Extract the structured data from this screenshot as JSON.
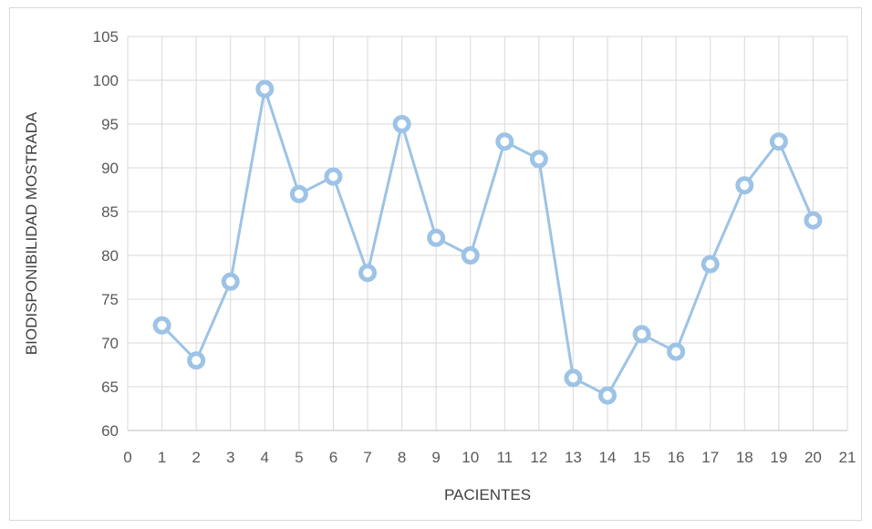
{
  "chart_data": {
    "type": "scatter",
    "title": "",
    "xlabel": "PACIENTES",
    "ylabel": "BIODISPONIBILIDAD MOSTRADA",
    "xlim": [
      0,
      21
    ],
    "ylim": [
      60,
      105
    ],
    "x_ticks": [
      0,
      1,
      2,
      3,
      4,
      5,
      6,
      7,
      8,
      9,
      10,
      11,
      12,
      13,
      14,
      15,
      16,
      17,
      18,
      19,
      20,
      21
    ],
    "y_ticks": [
      60,
      65,
      70,
      75,
      80,
      85,
      90,
      95,
      100,
      105
    ],
    "grid": true,
    "legend": "none",
    "line_color": "#9dc3e6",
    "marker": "circle",
    "series": [
      {
        "x": [
          1,
          2,
          3,
          4,
          5,
          6,
          7,
          8,
          9,
          10,
          11,
          12,
          13,
          14,
          15,
          16,
          17,
          18,
          19,
          20
        ],
        "values": [
          72,
          68,
          77,
          99,
          87,
          89,
          78,
          95,
          82,
          80,
          93,
          91,
          66,
          64,
          71,
          69,
          79,
          88,
          93,
          84
        ]
      }
    ]
  }
}
